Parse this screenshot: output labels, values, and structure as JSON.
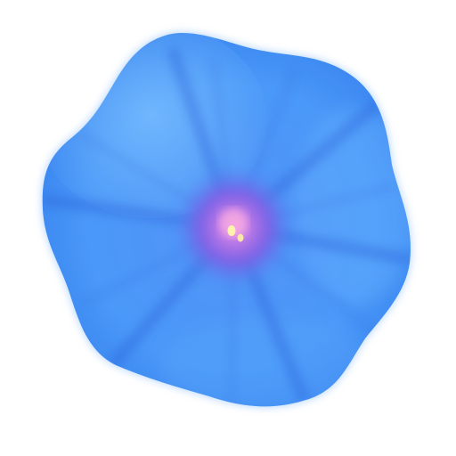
{
  "image": {
    "subject": "blue-morning-glory-flower",
    "background_color": "#ffffff",
    "colors": {
      "petal_light": "#6fb3ff",
      "petal_main": "#3f8ef2",
      "petal_edge": "#2f74e6",
      "vein": "#2a5fd8",
      "throat_purple": "#8a5ce0",
      "throat_pink": "#e98ad8",
      "stamen": "#fff2b0"
    }
  }
}
